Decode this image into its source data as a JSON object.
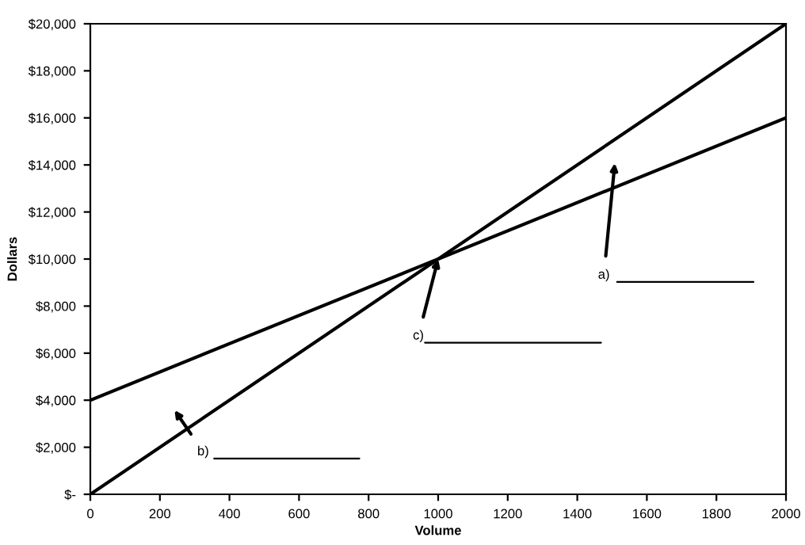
{
  "chart_data": {
    "type": "line",
    "xlabel": "Volume",
    "ylabel": "Dollars",
    "x": [
      0,
      2000
    ],
    "series": [
      {
        "color": "#000000",
        "values": [
          0,
          20000
        ]
      },
      {
        "color": "#000000",
        "values": [
          4000,
          16000
        ]
      }
    ],
    "xlim": [
      0,
      2000
    ],
    "xticks": [
      0,
      200,
      400,
      600,
      800,
      1000,
      1200,
      1400,
      1600,
      1800,
      2000
    ],
    "ylim": [
      0,
      20000
    ],
    "yticks": [
      {
        "value": 0,
        "label": "$-"
      },
      {
        "value": 2000,
        "label": "$2,000"
      },
      {
        "value": 4000,
        "label": "$4,000"
      },
      {
        "value": 6000,
        "label": "$6,000"
      },
      {
        "value": 8000,
        "label": "$8,000"
      },
      {
        "value": 10000,
        "label": "$10,000"
      },
      {
        "value": 12000,
        "label": "$12,000"
      },
      {
        "value": 14000,
        "label": "$14,000"
      },
      {
        "value": 16000,
        "label": "$16,000"
      },
      {
        "value": 18000,
        "label": "$18,000"
      },
      {
        "value": 20000,
        "label": "$20,000"
      }
    ],
    "annotations": [
      "a)",
      "b)",
      {
        "text": "c)",
        "x": 1000,
        "y": 10000
      }
    ],
    "grid": false,
    "legend": false,
    "marker": "none",
    "line_style": "solid"
  }
}
